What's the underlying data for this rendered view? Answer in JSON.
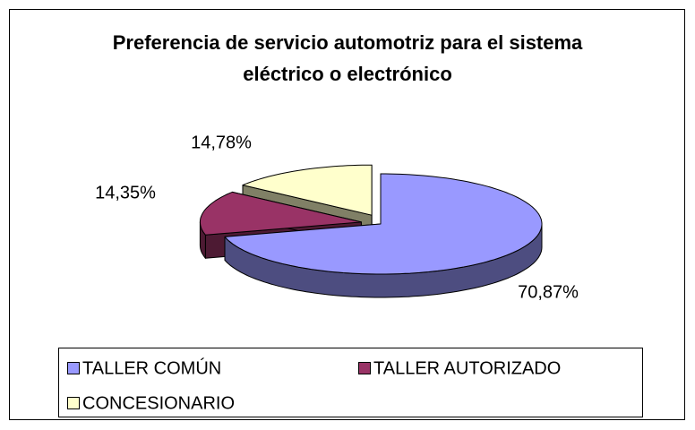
{
  "chart_data": {
    "type": "pie",
    "title": "Preferencia de servicio automotriz para el sistema eléctrico o electrónico",
    "categories": [
      "TALLER COMÚN",
      "TALLER AUTORIZADO",
      "CONCESIONARIO"
    ],
    "values": [
      70.87,
      14.35,
      14.78
    ],
    "value_labels": [
      "70,87%",
      "14,35%",
      "14,78%"
    ],
    "colors": [
      "#9999ff",
      "#993366",
      "#ffffcc"
    ],
    "legend": "bottom"
  }
}
